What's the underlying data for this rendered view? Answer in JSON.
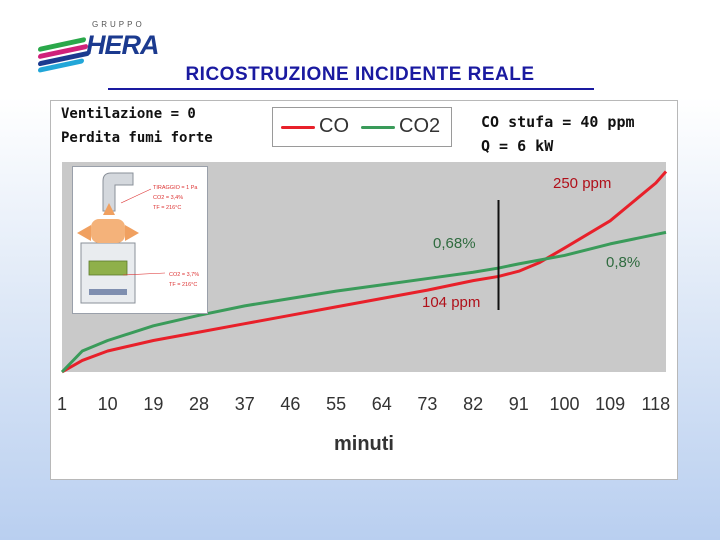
{
  "header": {
    "logo_small": "GRUPPO",
    "logo_brand": "HERA",
    "title": "RICOSTRUZIONE INCIDENTE REALE"
  },
  "notes": {
    "left_line1": "Ventilazione = 0",
    "left_line2": "Perdita fumi forte",
    "right_line1": "CO stufa = 40 ppm",
    "right_line2": "Q = 6 kW"
  },
  "inset": {
    "label1": "TIRAGGIO = 1 Pa",
    "label2": "CO2 = 3,4%",
    "label3": "TF = 216°C",
    "label4": "CO2 = 3,7%",
    "label5": "TF = 216°C"
  },
  "colors": {
    "co": "#e8202a",
    "co2": "#3a9b5a",
    "plot_bg": "#c9c9c9",
    "title": "#1a1aa0"
  },
  "chart_data": {
    "type": "line",
    "title": "",
    "xlabel": "minuti",
    "ylabel": "",
    "x_ticks": [
      1,
      10,
      19,
      28,
      37,
      46,
      55,
      64,
      73,
      82,
      91,
      100,
      109,
      118
    ],
    "xlim": [
      1,
      120
    ],
    "legend": {
      "placement": "top",
      "entries": [
        "CO",
        "CO2"
      ]
    },
    "grid": false,
    "marker_x": 87,
    "series": [
      {
        "name": "CO",
        "color": "#e8202a",
        "x": [
          1,
          5,
          10,
          19,
          28,
          37,
          46,
          55,
          64,
          73,
          82,
          87,
          91,
          95,
          100,
          109,
          118,
          120
        ],
        "values": [
          0,
          11,
          20,
          30,
          38,
          46,
          54,
          62,
          70,
          78,
          87,
          91,
          96,
          104,
          118,
          144,
          180,
          191
        ]
      },
      {
        "name": "CO2",
        "color": "#3a9b5a",
        "x": [
          1,
          5,
          10,
          19,
          28,
          37,
          46,
          55,
          64,
          73,
          82,
          87,
          91,
          100,
          109,
          118,
          120
        ],
        "values": [
          0,
          20,
          30,
          44,
          54,
          63,
          70,
          77,
          83,
          89,
          95,
          99,
          103,
          111,
          122,
          131,
          133
        ]
      }
    ],
    "annotations": [
      {
        "text": "250 ppm",
        "series": "CO"
      },
      {
        "text": "0,68%",
        "series": "CO2"
      },
      {
        "text": "104 ppm",
        "series": "CO"
      },
      {
        "text": "0,8%",
        "series": "CO2"
      }
    ]
  }
}
